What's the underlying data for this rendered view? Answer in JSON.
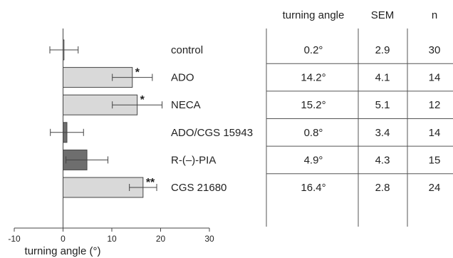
{
  "chart_data": {
    "type": "bar",
    "orientation": "horizontal",
    "xlabel": "turning angle (°)",
    "xlim": [
      -10,
      30
    ],
    "xticks": [
      -10,
      0,
      10,
      20,
      30
    ],
    "categories": [
      "control",
      "ADO",
      "NECA",
      "ADO/CGS 15943",
      "R-(–)-PIA",
      "CGS 21680"
    ],
    "values": [
      0.2,
      14.2,
      15.2,
      0.8,
      4.9,
      16.4
    ],
    "errors": [
      2.9,
      4.1,
      5.1,
      3.4,
      4.3,
      2.8
    ],
    "significance": [
      "",
      "*",
      "*",
      "",
      "",
      "**"
    ],
    "bar_colors": [
      "#d9d9d9",
      "#d9d9d9",
      "#d9d9d9",
      "#6e6e6e",
      "#6e6e6e",
      "#d9d9d9"
    ]
  },
  "table": {
    "headers": [
      "turning angle",
      "SEM",
      "n"
    ],
    "rows": [
      [
        "control",
        "0.2°",
        "2.9",
        "30"
      ],
      [
        "ADO",
        "14.2°",
        "4.1",
        "14"
      ],
      [
        "NECA",
        "15.2°",
        "5.1",
        "12"
      ],
      [
        "ADO/CGS 15943",
        "0.8°",
        "3.4",
        "14"
      ],
      [
        "R-(–)-PIA",
        "4.9°",
        "4.3",
        "15"
      ],
      [
        "CGS 21680",
        "16.4°",
        "2.8",
        "24"
      ]
    ]
  }
}
